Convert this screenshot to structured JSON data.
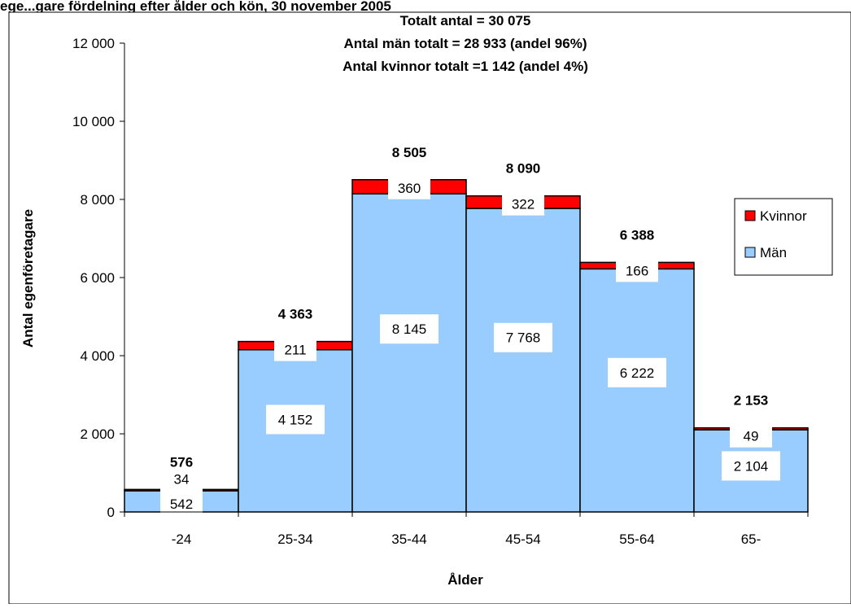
{
  "header": {
    "cut_title": "ege...gare fördelning efter ålder och kön, 30 november 2005"
  },
  "chart_data": {
    "type": "bar",
    "stacked": true,
    "title_lines": [
      "Totalt antal = 30 075",
      "Antal män totalt = 28 933 (andel 96%)",
      "Antal kvinnor totalt =1 142 (andel 4%)"
    ],
    "xlabel": "Ålder",
    "ylabel": "Antal egenföretagare",
    "ylim": [
      0,
      12000
    ],
    "yticks": [
      0,
      2000,
      4000,
      6000,
      8000,
      10000,
      12000
    ],
    "ytick_labels": [
      "0",
      "2 000",
      "4 000",
      "6 000",
      "8 000",
      "10 000",
      "12 000"
    ],
    "categories": [
      "-24",
      "25-34",
      "35-44",
      "45-54",
      "55-64",
      "65-"
    ],
    "series": [
      {
        "name": "Män",
        "color": "#99ccff",
        "values": [
          542,
          4152,
          8145,
          7768,
          6222,
          2104
        ],
        "labels": [
          "542",
          "4 152",
          "8 145",
          "7 768",
          "6 222",
          "2 104"
        ]
      },
      {
        "name": "Kvinnor",
        "color": "#ff0000",
        "values": [
          34,
          211,
          360,
          322,
          166,
          49
        ],
        "labels": [
          "34",
          "211",
          "360",
          "322",
          "166",
          "49"
        ]
      }
    ],
    "totals": [
      576,
      4363,
      8505,
      8090,
      6388,
      2153
    ],
    "total_labels": [
      "576",
      "4 363",
      "8 505",
      "8 090",
      "6 388",
      "2 153"
    ],
    "legend": {
      "position": "right",
      "entries": [
        "Kvinnor",
        "Män"
      ]
    },
    "grid": false
  }
}
